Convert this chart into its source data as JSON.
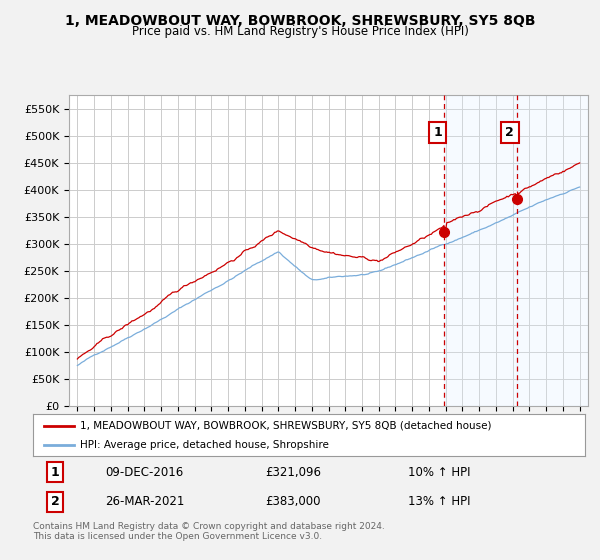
{
  "title": "1, MEADOWBOUT WAY, BOWBROOK, SHREWSBURY, SY5 8QB",
  "subtitle": "Price paid vs. HM Land Registry's House Price Index (HPI)",
  "ylim": [
    0,
    575000
  ],
  "yticks": [
    0,
    50000,
    100000,
    150000,
    200000,
    250000,
    300000,
    350000,
    400000,
    450000,
    500000,
    550000
  ],
  "ytick_labels": [
    "£0",
    "£50K",
    "£100K",
    "£150K",
    "£200K",
    "£250K",
    "£300K",
    "£350K",
    "£400K",
    "£450K",
    "£500K",
    "£550K"
  ],
  "line1_color": "#cc0000",
  "line2_color": "#7aaddb",
  "vline_color": "#cc0000",
  "shade_color": "#ddeeff",
  "legend_line1": "1, MEADOWBOUT WAY, BOWBROOK, SHREWSBURY, SY5 8QB (detached house)",
  "legend_line2": "HPI: Average price, detached house, Shropshire",
  "table_row1": [
    "1",
    "09-DEC-2016",
    "£321,096",
    "10% ↑ HPI"
  ],
  "table_row2": [
    "2",
    "26-MAR-2021",
    "£383,000",
    "13% ↑ HPI"
  ],
  "footnote": "Contains HM Land Registry data © Crown copyright and database right 2024.\nThis data is licensed under the Open Government Licence v3.0.",
  "background_color": "#f2f2f2",
  "plot_bg_color": "#ffffff",
  "grid_color": "#cccccc",
  "yr1": 2016.92,
  "yr2": 2021.23,
  "dot1_value": 321096,
  "dot2_value": 383000
}
